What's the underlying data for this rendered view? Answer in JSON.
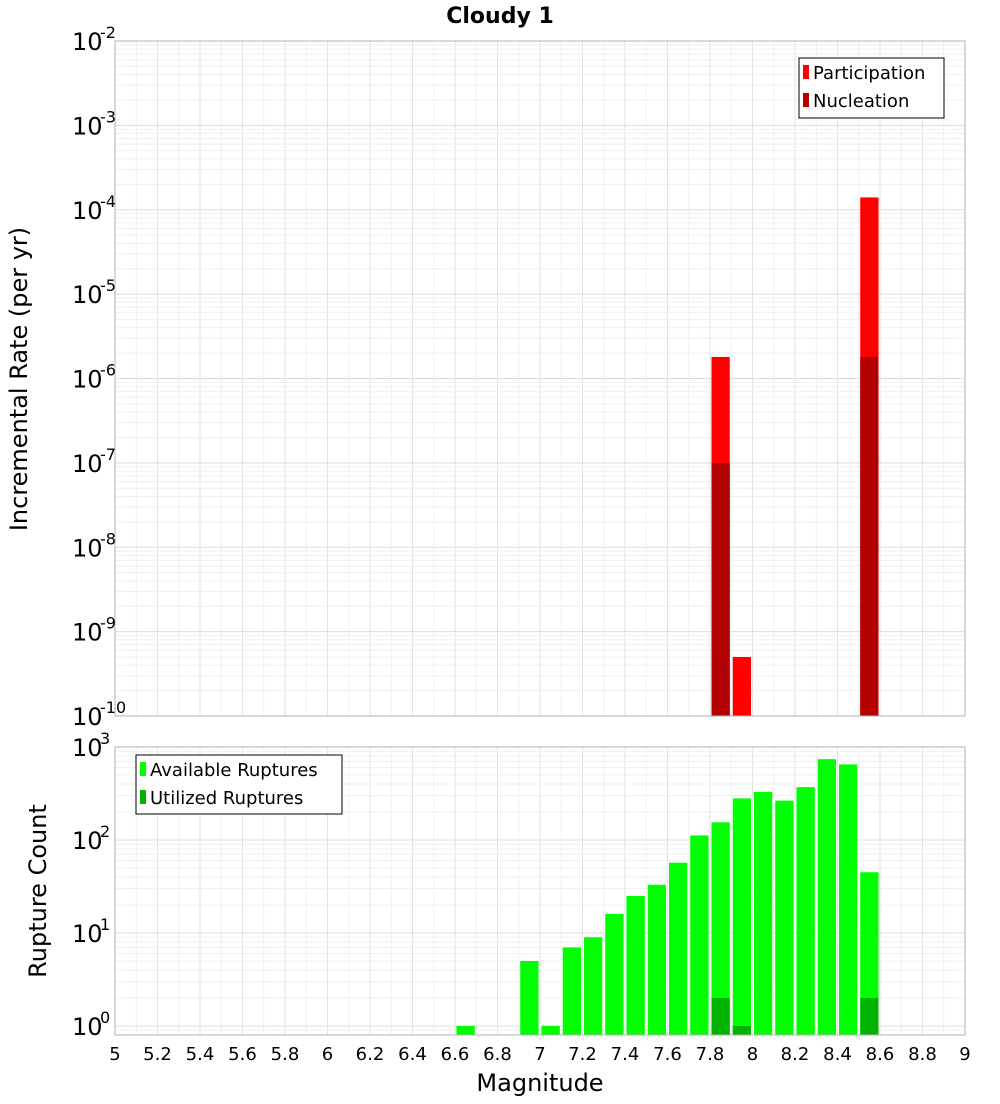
{
  "chart_data": [
    {
      "type": "bar",
      "title": "Cloudy 1",
      "xlabel": "",
      "ylabel": "Incremental Rate (per yr)",
      "xlim": [
        5,
        9
      ],
      "ylim": [
        1e-10,
        0.01
      ],
      "yscale": "log",
      "bin_width": 0.1,
      "grid": true,
      "legend_position": "top-right",
      "y_ticks": [
        {
          "base": "10",
          "exp": "-2"
        },
        {
          "base": "10",
          "exp": "-3"
        },
        {
          "base": "10",
          "exp": "-4"
        },
        {
          "base": "10",
          "exp": "-5"
        },
        {
          "base": "10",
          "exp": "-6"
        },
        {
          "base": "10",
          "exp": "-7"
        },
        {
          "base": "10",
          "exp": "-8"
        },
        {
          "base": "10",
          "exp": "-9"
        },
        {
          "base": "10",
          "exp": "-10"
        }
      ],
      "series": [
        {
          "name": "Participation",
          "color": "#ff0000",
          "points": [
            {
              "x": 7.85,
              "y": 1.8e-06
            },
            {
              "x": 7.95,
              "y": 5e-10
            },
            {
              "x": 8.55,
              "y": 0.00014
            }
          ]
        },
        {
          "name": "Nucleation",
          "color": "#b30000",
          "points": [
            {
              "x": 7.85,
              "y": 1e-07
            },
            {
              "x": 8.55,
              "y": 1.8e-06
            }
          ]
        }
      ]
    },
    {
      "type": "bar",
      "title": "",
      "xlabel": "Magnitude",
      "ylabel": "Rupture Count",
      "xlim": [
        5,
        9
      ],
      "ylim": [
        0.8,
        1000
      ],
      "yscale": "log",
      "bin_width": 0.1,
      "grid": true,
      "legend_position": "top-left",
      "x_ticks": [
        "5",
        "5.2",
        "5.4",
        "5.6",
        "5.8",
        "6",
        "6.2",
        "6.4",
        "6.6",
        "6.8",
        "7",
        "7.2",
        "7.4",
        "7.6",
        "7.8",
        "8",
        "8.2",
        "8.4",
        "8.6",
        "8.8",
        "9"
      ],
      "y_ticks": [
        {
          "base": "10",
          "exp": "3"
        },
        {
          "base": "10",
          "exp": "2"
        },
        {
          "base": "10",
          "exp": "1"
        },
        {
          "base": "10",
          "exp": "0"
        }
      ],
      "series": [
        {
          "name": "Available Ruptures",
          "color": "#00ff00",
          "points": [
            {
              "x": 6.65,
              "y": 1
            },
            {
              "x": 6.95,
              "y": 5
            },
            {
              "x": 7.05,
              "y": 1
            },
            {
              "x": 7.15,
              "y": 7
            },
            {
              "x": 7.25,
              "y": 9
            },
            {
              "x": 7.35,
              "y": 16
            },
            {
              "x": 7.45,
              "y": 25
            },
            {
              "x": 7.55,
              "y": 33
            },
            {
              "x": 7.65,
              "y": 57
            },
            {
              "x": 7.75,
              "y": 112
            },
            {
              "x": 7.85,
              "y": 155
            },
            {
              "x": 7.95,
              "y": 280
            },
            {
              "x": 8.05,
              "y": 330
            },
            {
              "x": 8.15,
              "y": 265
            },
            {
              "x": 8.25,
              "y": 370
            },
            {
              "x": 8.35,
              "y": 740
            },
            {
              "x": 8.45,
              "y": 650
            },
            {
              "x": 8.55,
              "y": 45
            }
          ]
        },
        {
          "name": "Utilized Ruptures",
          "color": "#00b300",
          "points": [
            {
              "x": 7.85,
              "y": 2
            },
            {
              "x": 7.95,
              "y": 1
            },
            {
              "x": 8.55,
              "y": 2
            }
          ]
        }
      ]
    }
  ]
}
